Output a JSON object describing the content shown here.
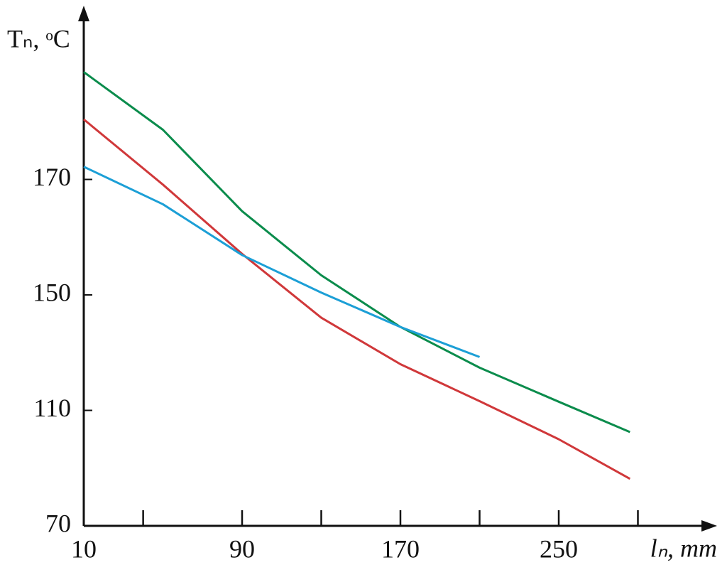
{
  "chart_data": {
    "type": "line",
    "x_label": "lₙ, mm",
    "y_label": "Tₙ, ᵒC",
    "x": [
      10,
      50,
      90,
      130,
      170,
      210,
      250,
      286
    ],
    "series": [
      {
        "color": "#0b8c4c",
        "values": [
          188.6,
          178.6,
          164.5,
          153.4,
          138.9,
          124.8,
          113,
          102.5
        ]
      },
      {
        "color": "#d0383a",
        "values": [
          180.4,
          169.1,
          157.1,
          142.1,
          126,
          113.2,
          100,
          86.3
        ]
      },
      {
        "color": "#1c9fd6",
        "values": [
          172.2,
          165.7,
          156.9,
          150.4,
          138.9,
          128.5,
          null,
          null
        ]
      }
    ],
    "xlim": [
      10,
      330
    ],
    "xticks": [
      10,
      90,
      170,
      250
    ],
    "xminorticks": [
      40,
      130,
      210,
      290
    ],
    "ylim": [
      70,
      199
    ],
    "yticks": [
      70,
      110,
      150,
      170
    ]
  }
}
